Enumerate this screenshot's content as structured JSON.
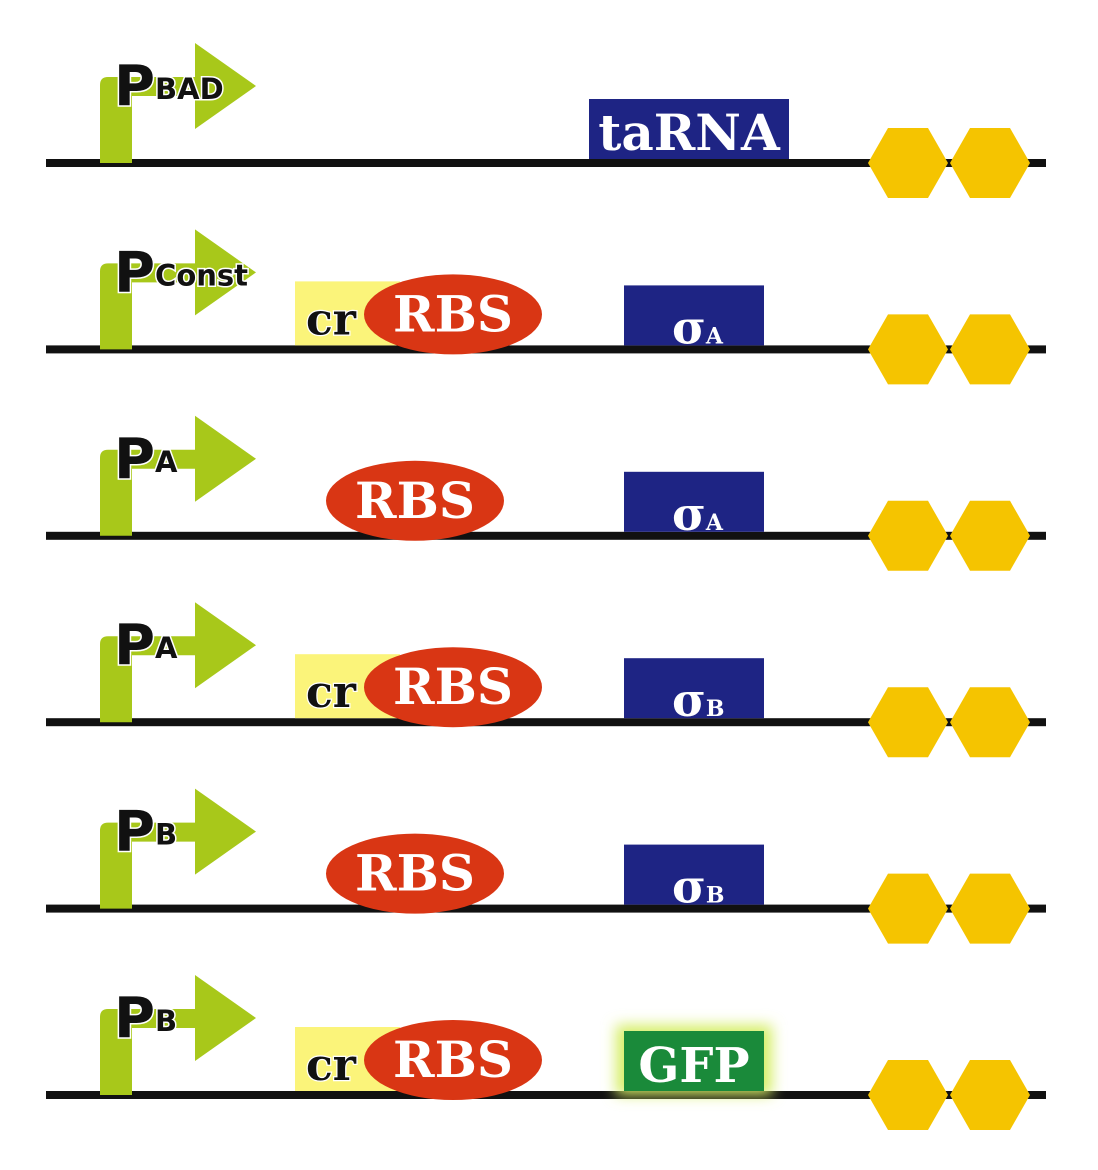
{
  "colors": {
    "backbone": "#111111",
    "promoter_arrow": "#a8c81a",
    "cr_box": "#fbf47a",
    "rbs": "#d93614",
    "gene_box": "#1e2484",
    "gfp_box": "#1a8a3a",
    "gfp_glow": "#d6ee66",
    "terminator": "#f5c400"
  },
  "constructs": [
    {
      "promoter": {
        "main": "P",
        "sub": "BAD"
      },
      "has_cr": false,
      "has_rbs": false,
      "rbs_label": "",
      "gene": {
        "main": "taRNA",
        "sub": "",
        "kind": "tarna"
      },
      "terminators": 2
    },
    {
      "promoter": {
        "main": "P",
        "sub": "Const"
      },
      "has_cr": true,
      "cr_label": "cr",
      "has_rbs": true,
      "rbs_label": "RBS",
      "gene": {
        "main": "σ",
        "sub": "A",
        "kind": "sigma"
      },
      "terminators": 2
    },
    {
      "promoter": {
        "main": "P",
        "sub": "A"
      },
      "has_cr": false,
      "has_rbs": true,
      "rbs_label": "RBS",
      "gene": {
        "main": "σ",
        "sub": "A",
        "kind": "sigma"
      },
      "terminators": 2
    },
    {
      "promoter": {
        "main": "P",
        "sub": "A"
      },
      "has_cr": true,
      "cr_label": "cr",
      "has_rbs": true,
      "rbs_label": "RBS",
      "gene": {
        "main": "σ",
        "sub": "B",
        "kind": "sigma"
      },
      "terminators": 2
    },
    {
      "promoter": {
        "main": "P",
        "sub": "B"
      },
      "has_cr": false,
      "has_rbs": true,
      "rbs_label": "RBS",
      "gene": {
        "main": "σ",
        "sub": "B",
        "kind": "sigma"
      },
      "terminators": 2
    },
    {
      "promoter": {
        "main": "P",
        "sub": "B"
      },
      "has_cr": true,
      "cr_label": "cr",
      "has_rbs": true,
      "rbs_label": "RBS",
      "gene": {
        "main": "GFP",
        "sub": "",
        "kind": "gfp"
      },
      "terminators": 2
    }
  ]
}
